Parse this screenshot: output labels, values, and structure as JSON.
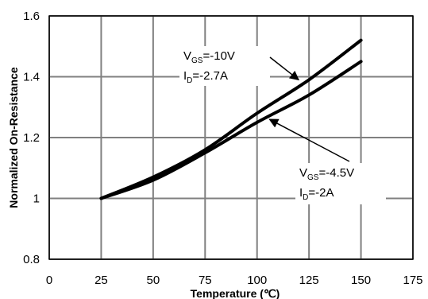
{
  "chart_data": {
    "type": "line",
    "xlabel": "Temperature (℃)",
    "ylabel": "Normalized On-Resistance",
    "xlim": [
      0,
      175
    ],
    "ylim": [
      0.8,
      1.6
    ],
    "x_ticks": [
      "0",
      "25",
      "50",
      "75",
      "100",
      "125",
      "150",
      "175"
    ],
    "y_ticks": [
      "0.8",
      "1",
      "1.2",
      "1.4",
      "1.6"
    ],
    "grid": true,
    "series": [
      {
        "name": "VGS=-10V, ID=-2.7A",
        "x": [
          25,
          50,
          75,
          100,
          125,
          150
        ],
        "y": [
          1.0,
          1.07,
          1.16,
          1.28,
          1.39,
          1.52
        ]
      },
      {
        "name": "VGS=-4.5V, ID=-2A",
        "x": [
          25,
          50,
          75,
          100,
          125,
          150
        ],
        "y": [
          1.0,
          1.06,
          1.15,
          1.25,
          1.34,
          1.45
        ]
      }
    ],
    "annotations": [
      {
        "lines": [
          {
            "main": "V",
            "sub": "GS",
            "rest": "=-10V"
          },
          {
            "main": "I",
            "sub": "D",
            "rest": "=-2.7A"
          }
        ],
        "arrow_to": {
          "x": 120,
          "y": 1.39
        }
      },
      {
        "lines": [
          {
            "main": "V",
            "sub": "GS",
            "rest": "=-4.5V"
          },
          {
            "main": "I",
            "sub": "D",
            "rest": "=-2A"
          }
        ],
        "arrow_to": {
          "x": 106,
          "y": 1.26
        }
      }
    ]
  }
}
